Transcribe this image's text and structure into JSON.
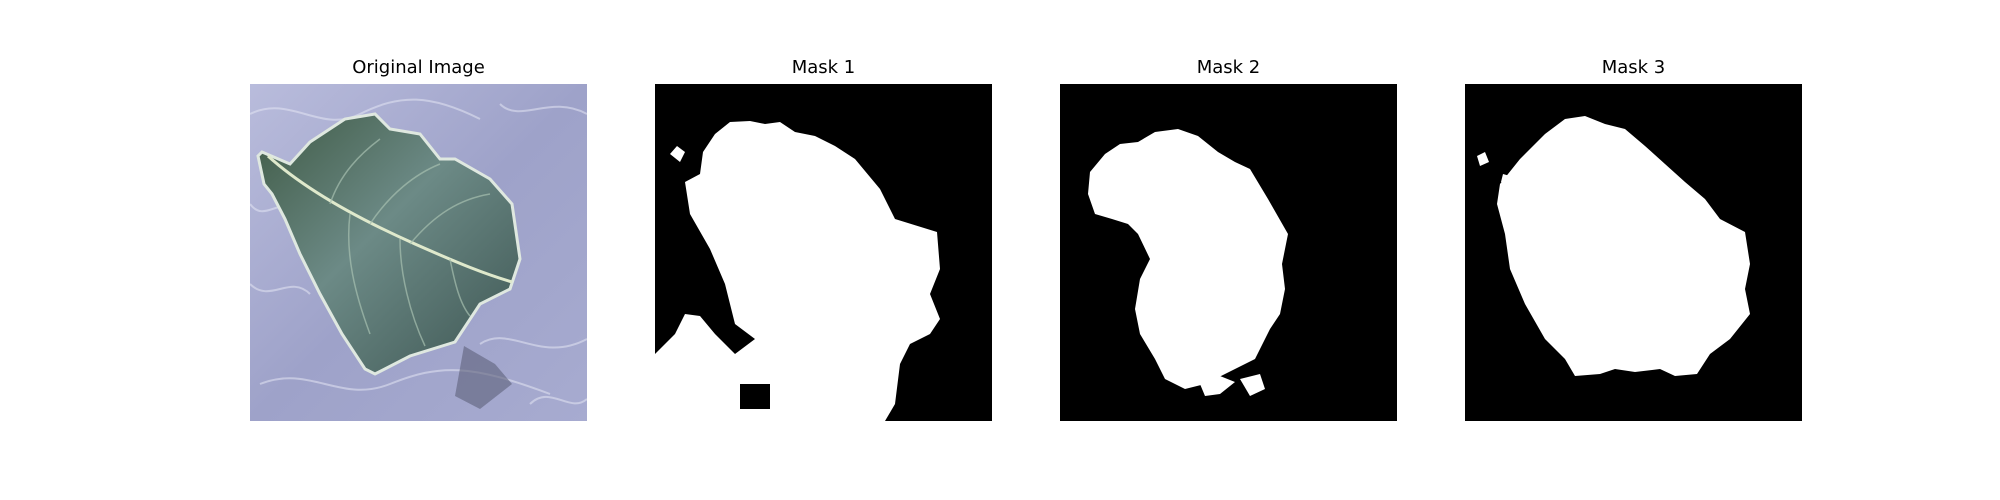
{
  "figure": {
    "panels": [
      {
        "title": "Original Image",
        "kind": "photo"
      },
      {
        "title": "Mask 1",
        "kind": "mask"
      },
      {
        "title": "Mask 2",
        "kind": "mask"
      },
      {
        "title": "Mask 3",
        "kind": "mask"
      }
    ],
    "colors": {
      "mask_background": "#000000",
      "mask_foreground": "#ffffff",
      "photo_background": "#9fa3c8",
      "leaf": "#4f6b5a"
    }
  }
}
